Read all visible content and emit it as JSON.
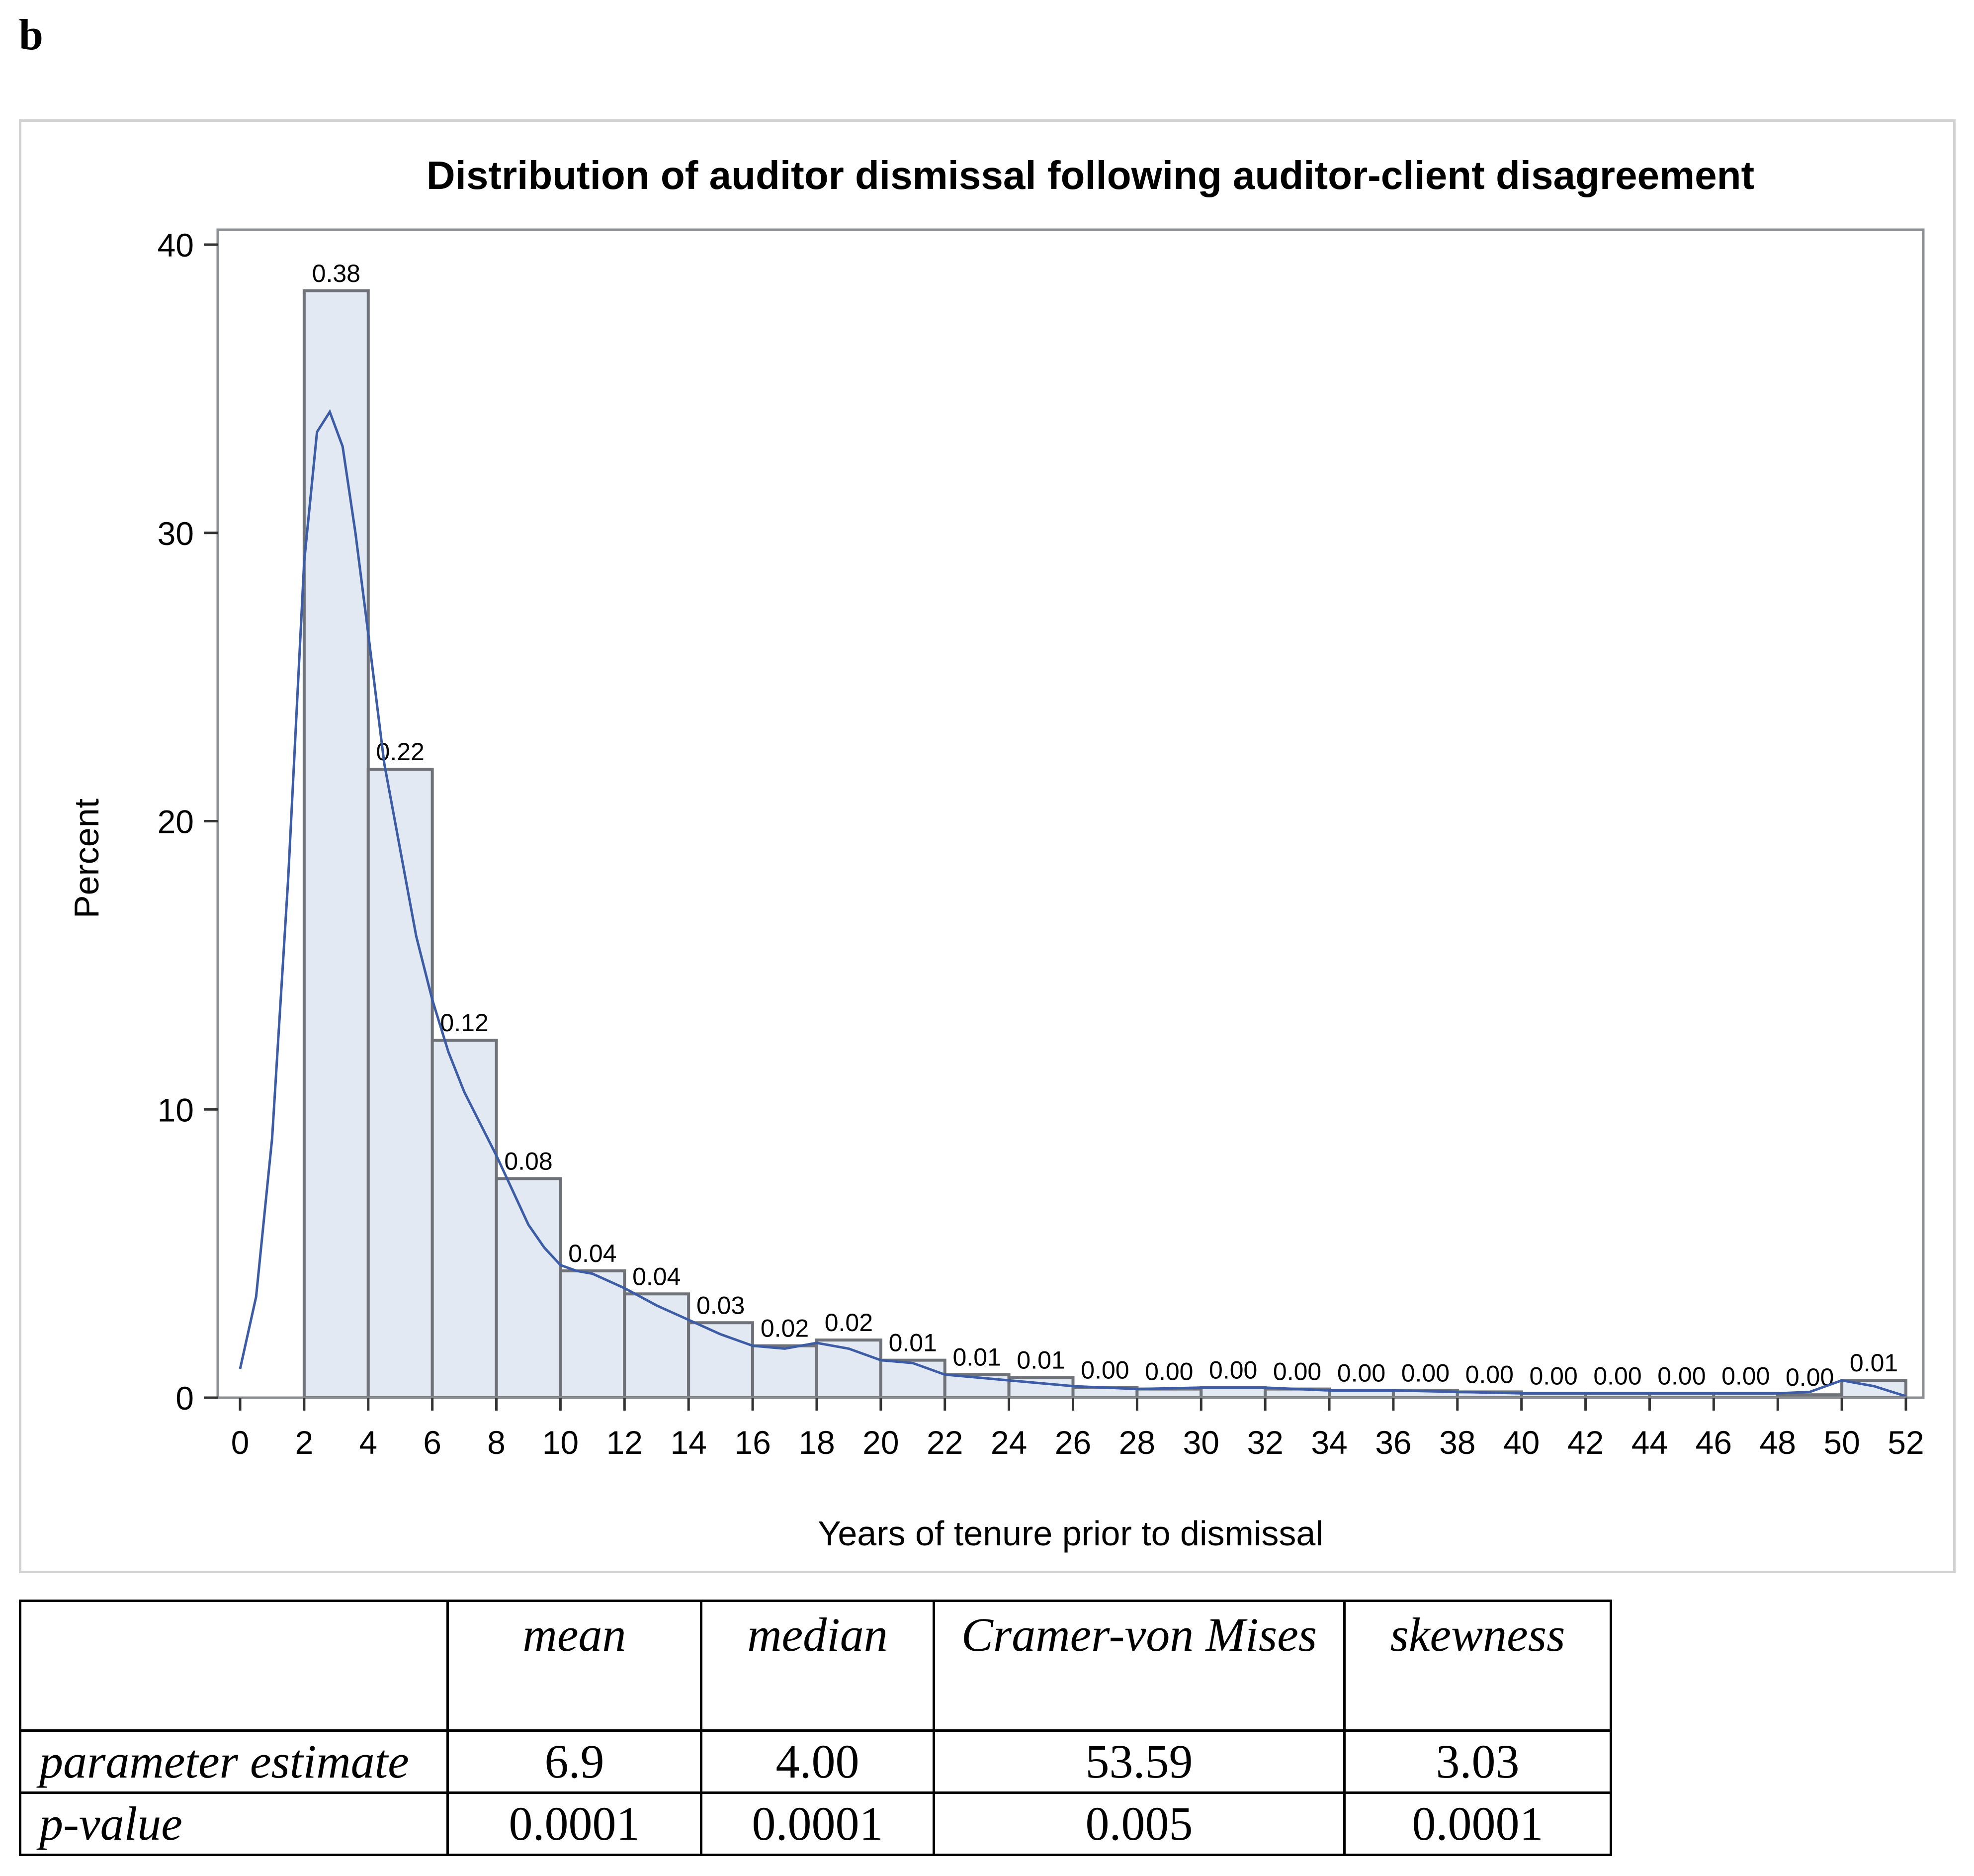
{
  "panel_label": "b",
  "chart_data": {
    "type": "bar",
    "title": "Distribution of auditor dismissal following auditor-client disagreement",
    "xlabel": "Years of tenure prior to dismissal",
    "ylabel": "Percent",
    "xlim": [
      0,
      52
    ],
    "ylim": [
      0,
      40
    ],
    "x_ticks": [
      "0",
      "2",
      "4",
      "6",
      "8",
      "10",
      "12",
      "14",
      "16",
      "18",
      "20",
      "22",
      "24",
      "26",
      "28",
      "30",
      "32",
      "34",
      "36",
      "38",
      "40",
      "42",
      "44",
      "46",
      "48",
      "50",
      "52"
    ],
    "y_ticks": [
      "0",
      "10",
      "20",
      "30",
      "40"
    ],
    "bins": [
      {
        "start": 2,
        "end": 4,
        "value": 38.4,
        "label": "0.38"
      },
      {
        "start": 4,
        "end": 6,
        "value": 21.8,
        "label": "0.22"
      },
      {
        "start": 6,
        "end": 8,
        "value": 12.4,
        "label": "0.12"
      },
      {
        "start": 8,
        "end": 10,
        "value": 7.6,
        "label": "0.08"
      },
      {
        "start": 10,
        "end": 12,
        "value": 4.4,
        "label": "0.04"
      },
      {
        "start": 12,
        "end": 14,
        "value": 3.6,
        "label": "0.04"
      },
      {
        "start": 14,
        "end": 16,
        "value": 2.6,
        "label": "0.03"
      },
      {
        "start": 16,
        "end": 18,
        "value": 1.8,
        "label": "0.02"
      },
      {
        "start": 18,
        "end": 20,
        "value": 2.0,
        "label": "0.02"
      },
      {
        "start": 20,
        "end": 22,
        "value": 1.3,
        "label": "0.01"
      },
      {
        "start": 22,
        "end": 24,
        "value": 0.8,
        "label": "0.01"
      },
      {
        "start": 24,
        "end": 26,
        "value": 0.7,
        "label": "0.01"
      },
      {
        "start": 26,
        "end": 28,
        "value": 0.35,
        "label": "0.00"
      },
      {
        "start": 28,
        "end": 30,
        "value": 0.3,
        "label": "0.00"
      },
      {
        "start": 30,
        "end": 32,
        "value": 0.35,
        "label": "0.00"
      },
      {
        "start": 32,
        "end": 34,
        "value": 0.3,
        "label": "0.00"
      },
      {
        "start": 34,
        "end": 36,
        "value": 0.25,
        "label": "0.00"
      },
      {
        "start": 36,
        "end": 38,
        "value": 0.25,
        "label": "0.00"
      },
      {
        "start": 38,
        "end": 40,
        "value": 0.2,
        "label": "0.00"
      },
      {
        "start": 40,
        "end": 42,
        "value": 0.15,
        "label": "0.00"
      },
      {
        "start": 42,
        "end": 44,
        "value": 0.15,
        "label": "0.00"
      },
      {
        "start": 44,
        "end": 46,
        "value": 0.15,
        "label": "0.00"
      },
      {
        "start": 46,
        "end": 48,
        "value": 0.15,
        "label": "0.00"
      },
      {
        "start": 48,
        "end": 50,
        "value": 0.1,
        "label": "0.00"
      },
      {
        "start": 50,
        "end": 52,
        "value": 0.6,
        "label": "0.01"
      }
    ],
    "density_curve": {
      "x": [
        0,
        0.5,
        1,
        1.5,
        2,
        2.4,
        2.8,
        3.2,
        3.6,
        4,
        4.5,
        5,
        5.5,
        6,
        6.5,
        7,
        7.5,
        8,
        8.5,
        9,
        9.5,
        10,
        10.5,
        11,
        12,
        13,
        14,
        15,
        16,
        17,
        18,
        19,
        20,
        21,
        22,
        23,
        24,
        25,
        26,
        28,
        30,
        32,
        34,
        36,
        38,
        40,
        42,
        44,
        46,
        48,
        49,
        50,
        51,
        52
      ],
      "y": [
        1.0,
        3.5,
        9.0,
        18.0,
        29.0,
        33.5,
        34.2,
        33.0,
        30.0,
        26.5,
        22.0,
        19.0,
        16.0,
        13.8,
        12.0,
        10.6,
        9.5,
        8.4,
        7.2,
        6.0,
        5.2,
        4.6,
        4.4,
        4.3,
        3.8,
        3.2,
        2.7,
        2.2,
        1.8,
        1.7,
        1.9,
        1.7,
        1.3,
        1.2,
        0.8,
        0.7,
        0.6,
        0.5,
        0.4,
        0.3,
        0.35,
        0.35,
        0.25,
        0.25,
        0.2,
        0.15,
        0.15,
        0.15,
        0.15,
        0.15,
        0.2,
        0.6,
        0.4,
        0.05
      ]
    },
    "colors": {
      "bar_fill": "#e3e9f3",
      "bar_stroke": "#6f7278",
      "curve": "#3d5ca6",
      "frame": "#8c8f93"
    },
    "grid": false
  },
  "stats_table": {
    "headers": [
      "",
      "mean",
      "median",
      "Cramer-von Mises",
      "skewness"
    ],
    "rows": [
      {
        "label": "parameter estimate",
        "values": [
          "6.9",
          "4.00",
          "53.59",
          "3.03"
        ]
      },
      {
        "label": "p-value",
        "values": [
          "0.0001",
          "0.0001",
          "0.005",
          "0.0001"
        ]
      }
    ]
  }
}
